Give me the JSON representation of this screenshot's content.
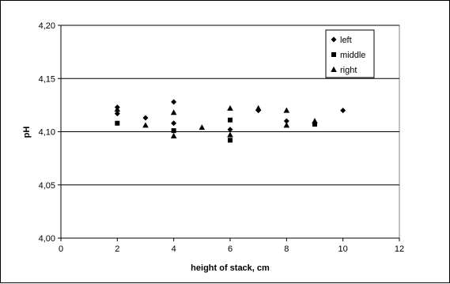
{
  "chart_data": {
    "type": "scatter",
    "xlabel": "height of stack, cm",
    "ylabel": "pH",
    "xlim": [
      0,
      12
    ],
    "ylim": [
      4.0,
      4.2
    ],
    "x_ticks": [
      0,
      2,
      4,
      6,
      8,
      10,
      12
    ],
    "y_ticks": [
      4.0,
      4.05,
      4.1,
      4.15,
      4.2
    ],
    "x_tick_labels": [
      "0",
      "2",
      "4",
      "6",
      "8",
      "10",
      "12"
    ],
    "y_tick_labels": [
      "4,00",
      "4,05",
      "4,10",
      "4,15",
      "4,20"
    ],
    "grid": "horizontal",
    "legend": "top-right",
    "series": [
      {
        "name": "left",
        "marker": "diamond",
        "color": "#000000",
        "points": [
          [
            2,
            4.123
          ],
          [
            2,
            4.117
          ],
          [
            3,
            4.113
          ],
          [
            4,
            4.128
          ],
          [
            4,
            4.108
          ],
          [
            6,
            4.102
          ],
          [
            7,
            4.12
          ],
          [
            8,
            4.11
          ],
          [
            9,
            4.108
          ],
          [
            10,
            4.12
          ]
        ]
      },
      {
        "name": "middle",
        "marker": "square",
        "color": "#000000",
        "points": [
          [
            2,
            4.108
          ],
          [
            4,
            4.101
          ],
          [
            6,
            4.111
          ],
          [
            6,
            4.092
          ],
          [
            9,
            4.107
          ]
        ]
      },
      {
        "name": "right",
        "marker": "triangle",
        "color": "#000000",
        "points": [
          [
            2,
            4.121
          ],
          [
            3,
            4.106
          ],
          [
            4,
            4.118
          ],
          [
            4,
            4.096
          ],
          [
            5,
            4.104
          ],
          [
            6,
            4.122
          ],
          [
            6,
            4.097
          ],
          [
            7,
            4.122
          ],
          [
            8,
            4.12
          ],
          [
            8,
            4.106
          ],
          [
            9,
            4.11
          ]
        ]
      }
    ]
  }
}
